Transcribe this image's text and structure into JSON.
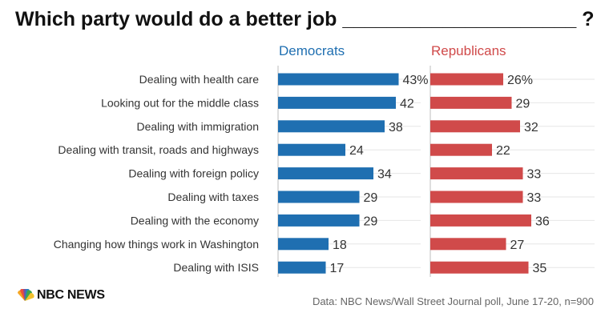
{
  "title": "Which party would do a better job _____________________ ?",
  "source": "Data: NBC News/Wall Street Journal poll, June 17-20, n=900",
  "logo": {
    "text": "NBC NEWS",
    "icon": "peacock-icon"
  },
  "colors": {
    "democrats": "#1f6fb1",
    "republicans": "#d04a4a",
    "text": "#333333",
    "grid": "#e6e6e6"
  },
  "chart_data": {
    "type": "bar",
    "orientation": "horizontal",
    "title": "Which party would do a better job _____________________ ?",
    "categories": [
      "Dealing with health care",
      "Looking out for the middle class",
      "Dealing with immigration",
      "Dealing with transit, roads and highways",
      "Dealing with foreign policy",
      "Dealing with taxes",
      "Dealing with the economy",
      "Changing how things work in Washington",
      "Dealing with ISIS"
    ],
    "series": [
      {
        "name": "Democrats",
        "values": [
          43,
          42,
          38,
          24,
          34,
          29,
          29,
          18,
          17
        ],
        "labels": [
          "43%",
          "42",
          "38",
          "24",
          "34",
          "29",
          "29",
          "18",
          "17"
        ]
      },
      {
        "name": "Republicans",
        "values": [
          26,
          29,
          32,
          22,
          33,
          33,
          36,
          27,
          35
        ],
        "labels": [
          "26%",
          "29",
          "32",
          "22",
          "33",
          "33",
          "36",
          "27",
          "35"
        ]
      }
    ],
    "xlim": [
      0,
      60
    ],
    "grid": true,
    "legend": "column headers above each panel"
  }
}
